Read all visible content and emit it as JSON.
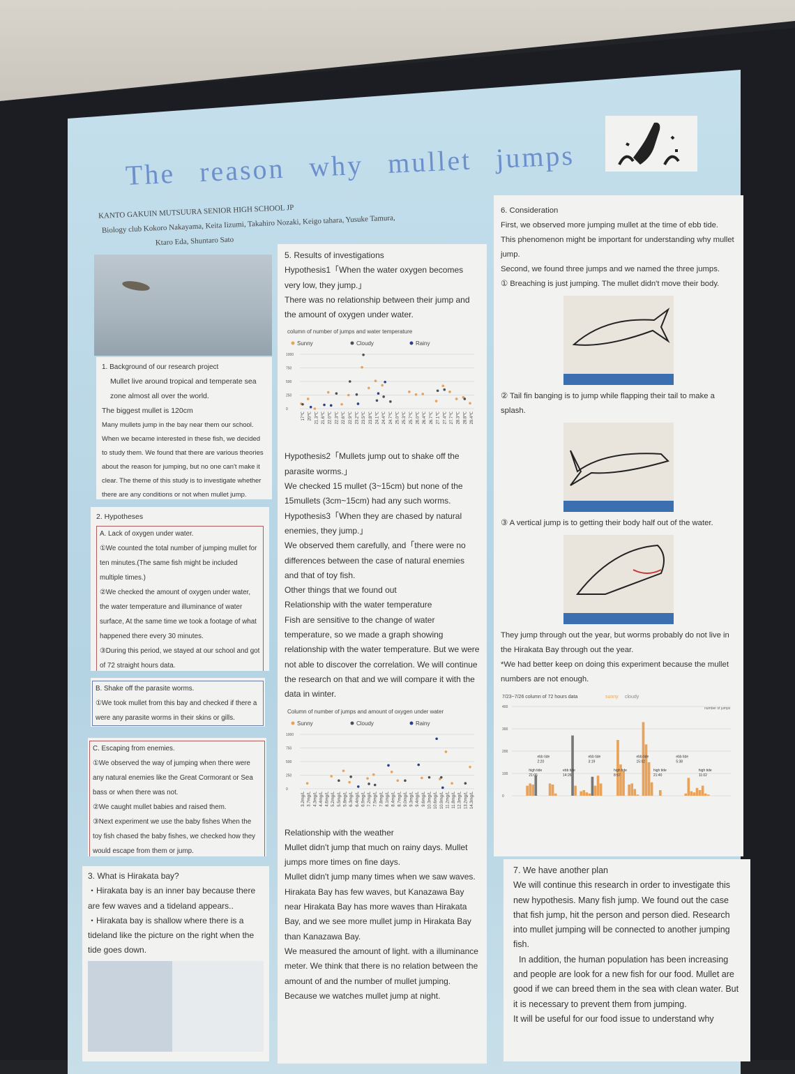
{
  "title": "The reason why mullet jumps",
  "school": "KANTO GAKUIN MUTSUURA SENIOR HIGH SCHOOL  JP",
  "authors_line1": "Biology club   Kokoro Nakayama, Keita Iizumi, Takahiro Nozaki, Keigo tahara, Yusuke Tamura,",
  "authors_line2": "Ktaro Eda, Shuntaro Sato",
  "s1": {
    "heading": "1. Background of our research project",
    "lines": [
      "Mullet live around tropical and temperate sea zone almost all over the world.",
      "The biggest mullet is 120cm",
      "Many mullets jump in the bay near them our school. When we became interested in these fish, we decided to study them. We found that there are various theories about the reason for jumping, but no one can't make it clear. The theme of this study is to investigate whether there are any conditions or not when mullet jump."
    ]
  },
  "s2": {
    "heading": "2. Hypotheses",
    "a_title": "A. Lack of oxygen under water.",
    "a_items": [
      "①We counted the total number of jumping mullet for ten minutes.(The same fish might be included multiple times.)",
      "②We checked the amount of oxygen under water, the water temperature and illuminance of water surface, At the same time we took a footage of what happened there every 30 minutes.",
      "③During this period, we stayed at our school and got of 72 straight  hours data."
    ],
    "b_title": "B. Shake off the parasite worms.",
    "b_items": [
      "①We took mullet from  this bay and checked if there a were any parasite worms in their  skins or gills."
    ],
    "c_title": "C. Escaping from enemies.",
    "c_items": [
      "①We observed the way of jumping when there were any natural enemies like the Great Cormorant or Sea bass or when there was not.",
      "②We caught mullet babies and raised them.",
      "③Next experiment we use the baby fishes When the toy fish chased the baby fishes, we checked how they would escape from them or jump."
    ]
  },
  "s3": {
    "heading": "3. What is Hirakata bay?",
    "items": [
      "・Hirakata bay is an inner bay because there are few waves and a tideland appears..",
      "・Hirakata bay is shallow where there is a tideland like the picture on the right when the tide goes down."
    ]
  },
  "s5": {
    "heading": "5. Results of investigations",
    "p1": [
      "Hypothesis1「When the water oxygen becomes very low, they  jump.」",
      "There was no relationship between their jump and the amount of oxygen under water."
    ],
    "p2": [
      "Hypothesis2「Mullets jump out to shake off  the parasite worms.」",
      "We checked 15 mullet (3~15cm) but none of the 15mullets (3cm~15cm) had any such worms.",
      "Hypothesis3「When they are chased by natural enemies, they jump.」",
      "We observed them carefully, and「there were no differences between the case of natural enemies and that of toy fish.",
      "Other things that we found out",
      "Relationship with the water temperature",
      "Fish are sensitive to the change of water temperature, so we made a graph showing relationship with the water temperature. But we were not able to discover the correlation. We will continue the research on that and we will compare it with the data in winter."
    ],
    "p3": [
      "Relationship with the weather",
      "Mullet didn't jump that much on rainy days. Mullet jumps more times on fine days.",
      "Mullet didn't jump many times when we saw waves. Hirakata Bay has few waves, but Kanazawa Bay near Hirakata Bay has more waves than Hirakata Bay, and we see more mullet jump in Hirakata Bay than Kanazawa Bay.",
      "We measured the amount of light. with a illuminance meter. We think that there is no relation between the amount of and the number of mullet jumping.",
      "Because we watches mullet jump at night."
    ]
  },
  "s6": {
    "heading": "6. Consideration",
    "p1": [
      "First, we observed more jumping mullet at the time of ebb tide.",
      "This phenomenon might be important for understanding why mullet jump.",
      "Second, we found three jumps and we named the three jumps."
    ],
    "j1": "①   Breaching is just jumping. The mullet didn't move their body.",
    "j2": "②   Tail fin banging is to jump while flapping their tail to make a splash.",
    "j3": "③  A vertical jump is to getting their body half out of the water.",
    "p2": [
      "They jump through out the year, but worms probably do not live in the Hirakata Bay through out the year.",
      "*We had better keep on doing this experiment because the mullet numbers are not enough."
    ]
  },
  "s7": {
    "heading": "7. We have another plan",
    "lines": [
      "We will continue this research in order to investigate this new hypothesis. Many fish jump. We found out the case that fish jump, hit the person and person died. Research into mullet jumping will be connected to another jumping fish.",
      "In addition, the human population has been increasing and people are look for a new fish for our food. Mullet are good if we can breed them in the sea with clean water. But it is necessary to prevent them from jumping.",
      "It will be useful for our food issue to understand why"
    ]
  },
  "colors": {
    "sunny": "#e8a25a",
    "cloudy": "#4a4f5a",
    "rainy": "#2b3e8c",
    "poster": "#c5dfec",
    "title": "#6d8fcc"
  },
  "chart_data": [
    {
      "type": "scatter",
      "title": "column of number of jumps and water temperature",
      "series": [
        {
          "name": "Sunny",
          "x": [
            "17℃",
            "20℃",
            "21.3℃",
            "22.0℃",
            "22.6℃",
            "22.9℃",
            "23.5℃",
            "23.8℃",
            "24.1℃",
            "24.4℃",
            "25.7℃",
            "26.0℃",
            "26.4℃",
            "27.1℃",
            "27.4℃",
            "27.7℃",
            "28.3℃",
            "28.8℃",
            "29.4℃"
          ],
          "y": [
            90,
            180,
            0,
            300,
            80,
            250,
            760,
            380,
            510,
            430,
            310,
            260,
            270,
            140,
            420,
            310,
            180,
            210,
            100
          ]
        },
        {
          "name": "Cloudy",
          "x": [
            "17℃",
            "22.3℃",
            "22.9℃",
            "23.2℃",
            "23.5℃",
            "24.1℃",
            "24.4℃",
            "24.7℃",
            "27.1℃",
            "27.4℃",
            "28.8℃"
          ],
          "y": [
            80,
            280,
            500,
            260,
            990,
            150,
            220,
            130,
            330,
            350,
            180
          ]
        },
        {
          "name": "Rainy",
          "x": [
            "20℃",
            "21.6℃",
            "22.0℃",
            "23.2℃",
            "24.1℃",
            "24.4℃"
          ],
          "y": [
            30,
            70,
            60,
            90,
            280,
            490
          ]
        }
      ],
      "x_ticks": [
        "17℃",
        "20℃",
        "21.3℃",
        "21.6℃",
        "22.0℃",
        "22.3℃",
        "22.6℃",
        "22.9℃",
        "23.2℃",
        "23.5℃",
        "23.8℃",
        "24.1℃",
        "24.4℃",
        "24.7℃",
        "25.0℃",
        "25.3℃",
        "25.7℃",
        "26.0℃",
        "26.4℃",
        "26.7℃",
        "27.1℃",
        "27.4℃",
        "27.7℃",
        "28.3℃",
        "28.8℃",
        "29.4℃"
      ],
      "y_ticks": [
        0,
        250,
        500,
        750,
        1000
      ],
      "ylim": [
        0,
        1000
      ],
      "grid": true,
      "legend": "top"
    },
    {
      "type": "scatter",
      "title": "Column of number of jumps and amount of oxygen under water",
      "series": [
        {
          "name": "Sunny",
          "x": [
            "3.7mg/L",
            "5.2mg/L",
            "5.8mg/L",
            "6.3mg/L",
            "7.2mg/L",
            "7.5mg/L",
            "8.4mg/L",
            "8.7mg/L",
            "9.6mg/L",
            "10.9mg/L",
            "11.2mg/L",
            "11.8mg/L",
            "14.3mg/L"
          ],
          "y": [
            100,
            230,
            330,
            120,
            190,
            260,
            310,
            150,
            200,
            180,
            680,
            100,
            400
          ]
        },
        {
          "name": "Cloudy",
          "x": [
            "5.5mg/L",
            "6.3mg/L",
            "7.2mg/L",
            "7.5mg/L",
            "9.0mg/L",
            "10.3mg/L",
            "10.9mg/L",
            "13.2mg/L"
          ],
          "y": [
            150,
            220,
            90,
            70,
            150,
            210,
            210,
            100
          ]
        },
        {
          "name": "Rainy",
          "x": [
            "6.4mg/L",
            "8.1mg/L",
            "9.4mg/L",
            "10.6mg/L",
            "10.9mg/L"
          ],
          "y": [
            40,
            430,
            440,
            920,
            20
          ]
        }
      ],
      "x_ticks": [
        "3.2mg/L",
        "3.7mg/L",
        "4.3mg/L",
        "4.4mg/L",
        "4.6mg/L",
        "5.2mg/L",
        "5.5mg/L",
        "5.8mg/L",
        "6.3mg/L",
        "6.4mg/L",
        "6.9mg/L",
        "7.2mg/L",
        "7.5mg/L",
        "7.8mg/L",
        "8.1mg/L",
        "8.4mg/L",
        "8.7mg/L",
        "9.0mg/L",
        "9.3mg/L",
        "9.4mg/L",
        "9.6mg/L",
        "10.3mg/L",
        "10.6mg/L",
        "10.9mg/L",
        "11.2mg/L",
        "11.8mg/L",
        "12.3mg/L",
        "13.2mg/L",
        "14.3mg/L"
      ],
      "y_ticks": [
        0,
        250,
        500,
        750,
        1000
      ],
      "ylim": [
        0,
        1000
      ],
      "grid": true,
      "legend": "top"
    },
    {
      "type": "bar",
      "title": "7/23~7/26  column of 72 hours data",
      "legend_items": [
        "sunny",
        "cloudy"
      ],
      "series_label": "number of jumps",
      "values": [
        0,
        0,
        0,
        0,
        0,
        45,
        55,
        50,
        90,
        0,
        0,
        0,
        0,
        55,
        50,
        10,
        0,
        0,
        0,
        0,
        0,
        270,
        45,
        0,
        20,
        25,
        15,
        10,
        85,
        45,
        90,
        55,
        0,
        0,
        0,
        0,
        0,
        250,
        140,
        110,
        0,
        50,
        55,
        30,
        5,
        0,
        330,
        230,
        150,
        60,
        0,
        0,
        25,
        0,
        0,
        0,
        0,
        0,
        0,
        0,
        0,
        10,
        80,
        20,
        15,
        35,
        25,
        45,
        10,
        5
      ],
      "cloudy_index": [
        8,
        21,
        28
      ],
      "annotations": [
        {
          "label": "high tide",
          "time": "21:06"
        },
        {
          "label": "ebb tide",
          "time": "2:20"
        },
        {
          "label": "ebb tide",
          "time": "14:26"
        },
        {
          "label": "ebb tide",
          "time": "3:19"
        },
        {
          "label": "high tide",
          "time": "8:57"
        },
        {
          "label": "ebb tide",
          "time": "15:02"
        },
        {
          "label": "high tide",
          "time": "21:40"
        },
        {
          "label": "ebb tide",
          "time": "5:38"
        },
        {
          "label": "high tide",
          "time": "11:02"
        }
      ],
      "y_ticks": [
        0,
        100,
        200,
        300,
        400
      ],
      "ylim": [
        0,
        400
      ],
      "grid": true
    }
  ]
}
